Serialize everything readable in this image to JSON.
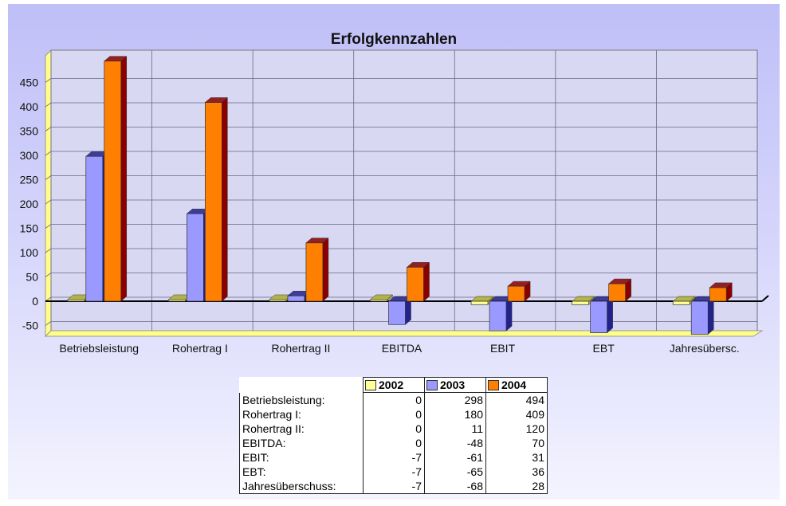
{
  "chart_data": {
    "type": "bar",
    "title": "Erfolgkennzahlen",
    "categories": [
      "Betriebsleistung",
      "Rohertrag I",
      "Rohertrag II",
      "EBITDA",
      "EBIT",
      "EBT",
      "Jahresübersc."
    ],
    "series": [
      {
        "name": "2002",
        "values": [
          0,
          0,
          0,
          0,
          -7,
          -7,
          -7
        ],
        "color": "#ffff99",
        "side_color": "#b0b030"
      },
      {
        "name": "2003",
        "values": [
          298,
          180,
          11,
          -48,
          -61,
          -65,
          -68
        ],
        "color": "#9999ff",
        "side_color": "#22228a"
      },
      {
        "name": "2004",
        "values": [
          494,
          409,
          120,
          70,
          31,
          36,
          28
        ],
        "color": "#ff8000",
        "side_color": "#8a0000"
      }
    ],
    "ylim": [
      -60,
      490
    ],
    "yticks": [
      -50,
      0,
      50,
      100,
      150,
      200,
      250,
      300,
      350,
      400,
      450
    ],
    "grid": true,
    "xlabel": "",
    "ylabel": ""
  },
  "table": {
    "headers": [
      "2002",
      "2003",
      "2004"
    ],
    "rows": [
      {
        "label": "Betriebsleistung:",
        "values": [
          "0",
          "298",
          "494"
        ]
      },
      {
        "label": "Rohertrag I:",
        "values": [
          "0",
          "180",
          "409"
        ]
      },
      {
        "label": "Rohertrag II:",
        "values": [
          "0",
          "11",
          "120"
        ]
      },
      {
        "label": "EBITDA:",
        "values": [
          "0",
          "-48",
          "70"
        ]
      },
      {
        "label": "EBIT:",
        "values": [
          "-7",
          "-61",
          "31"
        ]
      },
      {
        "label": "EBT:",
        "values": [
          "-7",
          "-65",
          "36"
        ]
      },
      {
        "label": "Jahresüberschuss:",
        "values": [
          "-7",
          "-68",
          "28"
        ]
      }
    ]
  }
}
